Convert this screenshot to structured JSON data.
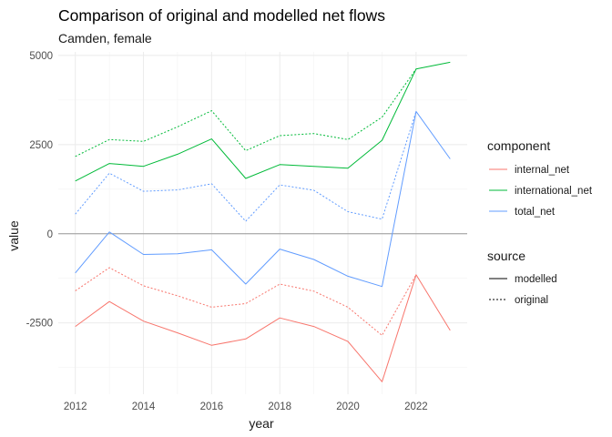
{
  "chart_data": {
    "type": "line",
    "title": "Comparison of original and modelled net flows",
    "subtitle": "Camden, female",
    "xlabel": "year",
    "ylabel": "value",
    "xlim": [
      2011.5,
      2023.5
    ],
    "ylim": [
      -4500,
      5100
    ],
    "xticks": [
      2012,
      2014,
      2016,
      2018,
      2020,
      2022
    ],
    "yticks": [
      5000,
      2500,
      0,
      -2500
    ],
    "ytick_labels": [
      "5000",
      "2500",
      "0",
      "-2500"
    ],
    "grid": true,
    "zero_line": true,
    "legend_placement": "right",
    "legends": [
      {
        "title": "component",
        "entries": [
          {
            "label": "internal_net",
            "color": "#F8766D"
          },
          {
            "label": "international_net",
            "color": "#00BA38"
          },
          {
            "label": "total_net",
            "color": "#619CFF"
          }
        ]
      },
      {
        "title": "source",
        "entries": [
          {
            "label": "modelled",
            "dash": "solid"
          },
          {
            "label": "original",
            "dash": "dotted"
          }
        ]
      }
    ],
    "x": [
      2012,
      2013,
      2014,
      2015,
      2016,
      2017,
      2018,
      2019,
      2020,
      2021,
      2022,
      2023
    ],
    "series": [
      {
        "component": "internal_net",
        "source": "modelled",
        "color": "#F8766D",
        "dash": "solid",
        "values": [
          -2600,
          -1900,
          -2450,
          -2780,
          -3130,
          -2950,
          -2360,
          -2600,
          -3020,
          -4150,
          -1150,
          -2710
        ]
      },
      {
        "component": "international_net",
        "source": "modelled",
        "color": "#00BA38",
        "dash": "solid",
        "values": [
          1480,
          1970,
          1890,
          2230,
          2660,
          1550,
          1940,
          1890,
          1840,
          2620,
          4620,
          4810
        ]
      },
      {
        "component": "total_net",
        "source": "modelled",
        "color": "#619CFF",
        "dash": "solid",
        "values": [
          -1100,
          50,
          -580,
          -560,
          -450,
          -1410,
          -430,
          -720,
          -1190,
          -1480,
          3430,
          2100
        ]
      },
      {
        "component": "internal_net",
        "source": "original",
        "color": "#F8766D",
        "dash": "dotted",
        "values": [
          -1600,
          -950,
          -1460,
          -1740,
          -2060,
          -1960,
          -1410,
          -1610,
          -2060,
          -2850,
          -1150,
          null
        ]
      },
      {
        "component": "international_net",
        "source": "original",
        "color": "#00BA38",
        "dash": "dotted",
        "values": [
          2170,
          2640,
          2590,
          3000,
          3450,
          2330,
          2750,
          2810,
          2640,
          3270,
          4620,
          null
        ]
      },
      {
        "component": "total_net",
        "source": "original",
        "color": "#619CFF",
        "dash": "dotted",
        "values": [
          550,
          1700,
          1190,
          1230,
          1400,
          350,
          1370,
          1220,
          620,
          410,
          3430,
          null
        ]
      }
    ]
  }
}
